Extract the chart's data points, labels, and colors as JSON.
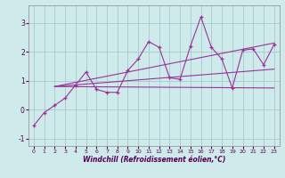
{
  "xlabel": "Windchill (Refroidissement éolien,°C)",
  "background_color": "#ceeaea",
  "grid_color": "#aacece",
  "line_color": "#993399",
  "x_vals": [
    0,
    1,
    2,
    3,
    4,
    5,
    6,
    7,
    8,
    9,
    10,
    11,
    12,
    13,
    14,
    15,
    16,
    17,
    18,
    19,
    20,
    21,
    22,
    23
  ],
  "y_scatter": [
    -0.55,
    -0.1,
    0.15,
    0.4,
    0.85,
    1.3,
    0.7,
    0.6,
    0.6,
    1.35,
    1.75,
    2.35,
    2.15,
    1.1,
    1.05,
    2.2,
    3.2,
    2.15,
    1.75,
    0.75,
    2.05,
    2.1,
    1.55,
    2.25
  ],
  "y_trend1_x": [
    2,
    23
  ],
  "y_trend1_y": [
    0.8,
    0.75
  ],
  "y_trend2_x": [
    2,
    23
  ],
  "y_trend2_y": [
    0.8,
    1.4
  ],
  "y_trend3_x": [
    2,
    23
  ],
  "y_trend3_y": [
    0.8,
    2.3
  ],
  "ylim": [
    -1.25,
    3.6
  ],
  "xlim": [
    -0.5,
    23.5
  ],
  "yticks": [
    -1,
    0,
    1,
    2,
    3
  ],
  "xticks": [
    0,
    1,
    2,
    3,
    4,
    5,
    6,
    7,
    8,
    9,
    10,
    11,
    12,
    13,
    14,
    15,
    16,
    17,
    18,
    19,
    20,
    21,
    22,
    23
  ]
}
